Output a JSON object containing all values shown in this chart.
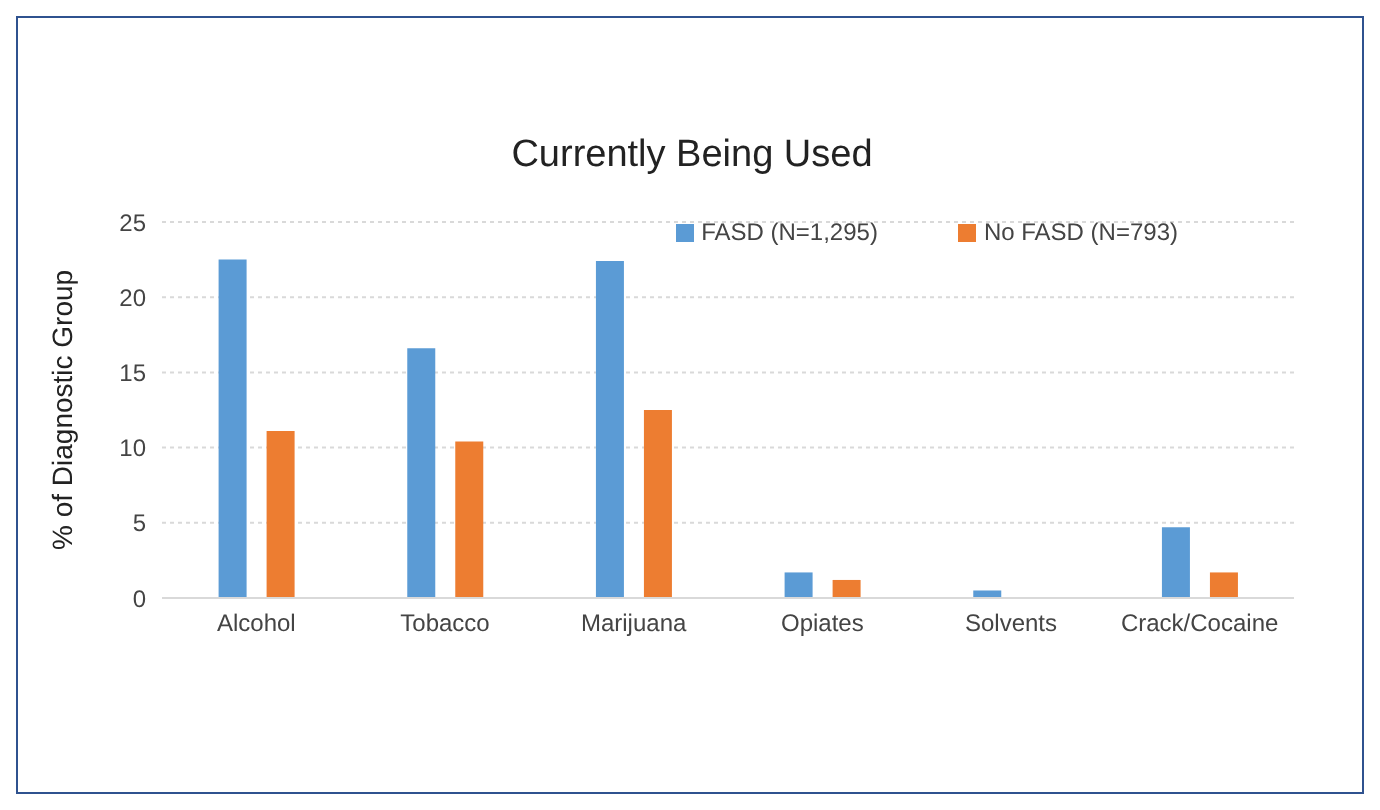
{
  "chart_data": {
    "type": "bar",
    "title": "Currently Being Used",
    "ylabel": "% of Diagnostic Group",
    "categories": [
      "Alcohol",
      "Tobacco",
      "Marijuana",
      "Opiates",
      "Solvents",
      "Crack/Cocaine"
    ],
    "series": [
      {
        "name": "FASD (N=1,295)",
        "color": "#5b9bd5",
        "values": [
          22.5,
          16.6,
          22.4,
          1.7,
          0.5,
          4.7
        ]
      },
      {
        "name": "No FASD (N=793)",
        "color": "#ed7d31",
        "values": [
          11.1,
          10.4,
          12.5,
          1.2,
          0,
          1.7
        ]
      }
    ],
    "ylim": [
      0,
      25
    ],
    "yticks": [
      0,
      5,
      10,
      15,
      20,
      25
    ],
    "grid": "y",
    "legend": "top right"
  }
}
